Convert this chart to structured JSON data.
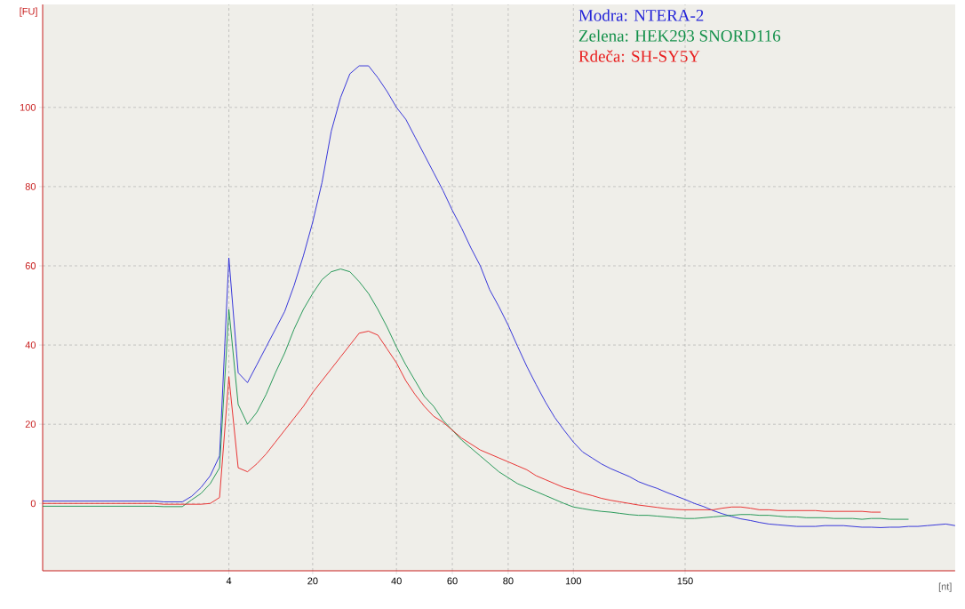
{
  "chart_data": {
    "type": "line",
    "xlabel": "[nt]",
    "ylabel": "[FU]",
    "categories": [
      null,
      null,
      null,
      null,
      null,
      null,
      null,
      null,
      null,
      null,
      null,
      null,
      null,
      null,
      null,
      null,
      null,
      null,
      null,
      null,
      "4",
      null,
      null,
      null,
      null,
      null,
      null,
      null,
      null,
      "20",
      null,
      null,
      null,
      null,
      null,
      null,
      null,
      null,
      "40",
      null,
      null,
      null,
      null,
      null,
      "60",
      null,
      null,
      null,
      null,
      null,
      "80",
      null,
      null,
      null,
      null,
      null,
      null,
      "100",
      null,
      null,
      null,
      null,
      null,
      null,
      null,
      null,
      null,
      null,
      null,
      "150",
      null,
      null,
      null,
      null,
      null,
      null,
      null,
      null,
      null,
      null,
      null,
      null,
      null,
      null,
      null,
      null,
      null,
      null,
      null,
      null,
      null,
      null,
      null,
      null,
      null,
      null,
      null,
      null,
      null
    ],
    "ylim": [
      -17,
      126
    ],
    "yticks": [
      0,
      20,
      40,
      60,
      80,
      100
    ],
    "grid": true,
    "legend": "top right",
    "line_style": "solid",
    "marker": "none",
    "series": [
      {
        "name": "Modra: NTERA-2",
        "color": "#2424d8",
        "values": [
          0.6,
          0.6,
          0.6,
          0.6,
          0.6,
          0.6,
          0.6,
          0.6,
          0.6,
          0.6,
          0.6,
          0.6,
          0.6,
          0.4,
          0.4,
          0.4,
          1.8,
          4,
          7,
          12,
          62,
          33,
          30.5,
          35,
          39.5,
          44,
          48.5,
          55,
          62.5,
          71,
          81,
          94,
          102.5,
          108.5,
          110.5,
          110.5,
          107.5,
          104,
          100,
          97,
          92.5,
          88,
          83.5,
          79,
          74,
          69.5,
          64.5,
          60,
          54,
          49.7,
          45,
          39.7,
          34.6,
          30,
          25.6,
          21.7,
          18.5,
          15.5,
          13,
          11.5,
          10,
          8.8,
          7.8,
          6.8,
          5.5,
          4.6,
          3.8,
          2.8,
          1.9,
          1,
          0,
          -0.8,
          -1.8,
          -2.6,
          -3.3,
          -3.9,
          -4.3,
          -4.8,
          -5.2,
          -5.4,
          -5.6,
          -5.8,
          -5.8,
          -5.8,
          -5.6,
          -5.6,
          -5.6,
          -5.8,
          -6,
          -6,
          -6.1,
          -6,
          -6,
          -5.8,
          -5.8,
          -5.6,
          -5.4,
          -5.2,
          -5.6
        ]
      },
      {
        "name": "Zelena: HEK293 SNORD116",
        "color": "#13904a",
        "values": [
          -0.7,
          -0.7,
          -0.7,
          -0.7,
          -0.7,
          -0.7,
          -0.7,
          -0.7,
          -0.7,
          -0.7,
          -0.7,
          -0.7,
          -0.7,
          -0.8,
          -0.8,
          -0.8,
          0.9,
          2.5,
          5,
          9,
          49,
          25,
          20,
          23,
          27.5,
          33,
          38,
          44,
          49,
          53,
          56.5,
          58.5,
          59.2,
          58.5,
          56,
          53,
          49,
          44.5,
          39.5,
          35,
          31,
          27,
          24.5,
          21,
          18.5,
          16,
          14,
          12,
          10,
          8,
          6.5,
          5,
          4,
          3,
          2,
          1,
          0,
          -0.9,
          -1.3,
          -1.7,
          -2,
          -2.2,
          -2.5,
          -2.8,
          -3,
          -3,
          -3.2,
          -3.4,
          -3.6,
          -3.8,
          -3.8,
          -3.6,
          -3.4,
          -3.2,
          -3,
          -2.8,
          -2.8,
          -3,
          -3,
          -3.2,
          -3.4,
          -3.4,
          -3.6,
          -3.6,
          -3.6,
          -3.8,
          -3.8,
          -3.8,
          -4,
          -3.8,
          -3.8,
          -4,
          -4,
          -4,
          null,
          null,
          null,
          null,
          null
        ]
      },
      {
        "name": "Rdeča: SH-SY5Y",
        "color": "#e82020",
        "values": [
          0,
          0,
          0,
          0,
          0,
          0,
          0,
          0,
          0,
          0,
          0,
          0,
          0,
          -0.2,
          -0.2,
          -0.2,
          -0.2,
          -0.2,
          0,
          1.5,
          32,
          9,
          8,
          10,
          12.5,
          15.5,
          18.5,
          21.5,
          24.5,
          28,
          31,
          34,
          37,
          40,
          43,
          43.5,
          42.5,
          39,
          35.5,
          31,
          27.5,
          24.5,
          22,
          20.5,
          18.5,
          16.5,
          15,
          13.5,
          12.5,
          11.5,
          10.5,
          9.5,
          8.5,
          7,
          6,
          5,
          4,
          3.4,
          2.6,
          2,
          1.3,
          0.8,
          0.4,
          0,
          -0.4,
          -0.7,
          -1,
          -1.3,
          -1.5,
          -1.6,
          -1.6,
          -1.6,
          -1.6,
          -1.2,
          -0.9,
          -0.9,
          -1.2,
          -1.6,
          -1.6,
          -1.8,
          -1.8,
          -1.8,
          -1.8,
          -1.8,
          -2,
          -2,
          -2,
          -2,
          -2,
          -2.2,
          -2.2,
          null,
          null,
          null,
          null,
          null,
          null,
          null,
          null
        ]
      }
    ]
  }
}
